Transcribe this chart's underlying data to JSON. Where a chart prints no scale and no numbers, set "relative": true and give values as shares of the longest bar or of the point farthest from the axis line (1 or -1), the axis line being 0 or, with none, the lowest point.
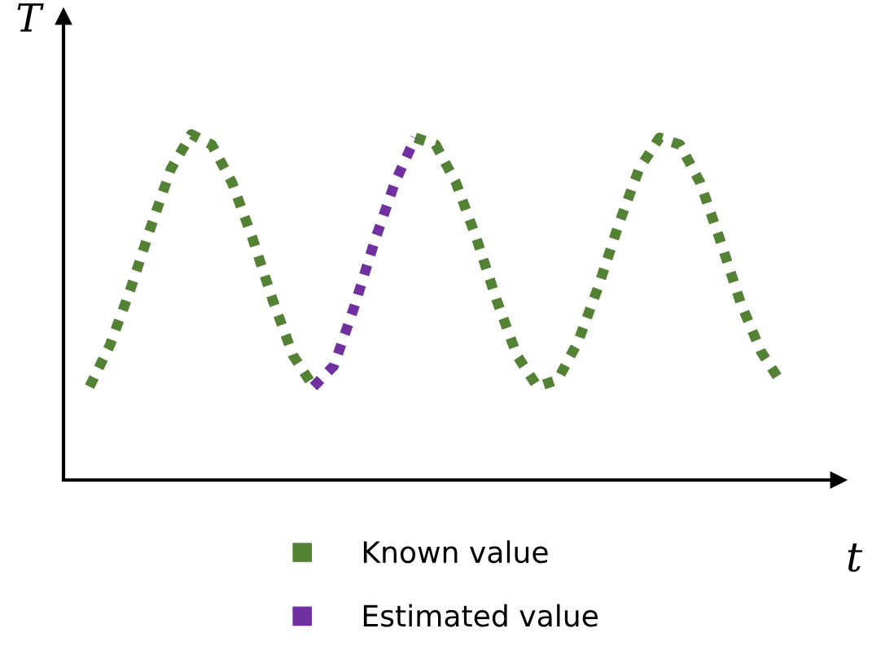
{
  "chart_data": {
    "type": "line",
    "relative": true,
    "xlabel": "t",
    "ylabel": "T",
    "legend": "bottom",
    "line_style": "dotted",
    "marker": "none",
    "categories": [
      null,
      null,
      null,
      null,
      null,
      null,
      null,
      null,
      null,
      null,
      null,
      null,
      null,
      null,
      null,
      null,
      null,
      null,
      null,
      null,
      null,
      null,
      null,
      null,
      null,
      null,
      null,
      null,
      null,
      null,
      null,
      null,
      null,
      null,
      null
    ],
    "series": [
      {
        "name": "Known value",
        "color": "#548235",
        "values": [
          0.27,
          0.39,
          0.55,
          0.73,
          0.9,
          1.0,
          0.97,
          0.86,
          0.7,
          0.52,
          0.36,
          0.27,
          null,
          null,
          null,
          null,
          0.99,
          0.97,
          0.86,
          0.7,
          0.52,
          0.36,
          0.27,
          0.29,
          0.4,
          0.56,
          0.74,
          0.9,
          0.99,
          0.97,
          0.86,
          0.69,
          0.51,
          0.37,
          0.28
        ]
      },
      {
        "name": "Estimated value",
        "color": "#7030a0",
        "values": [
          null,
          null,
          null,
          null,
          null,
          null,
          null,
          null,
          null,
          null,
          null,
          0.27,
          0.33,
          0.5,
          0.69,
          0.86,
          0.99,
          null,
          null,
          null,
          null,
          null,
          null,
          null,
          null,
          null,
          null,
          null,
          null,
          null,
          null,
          null,
          null,
          null,
          null
        ]
      }
    ]
  }
}
